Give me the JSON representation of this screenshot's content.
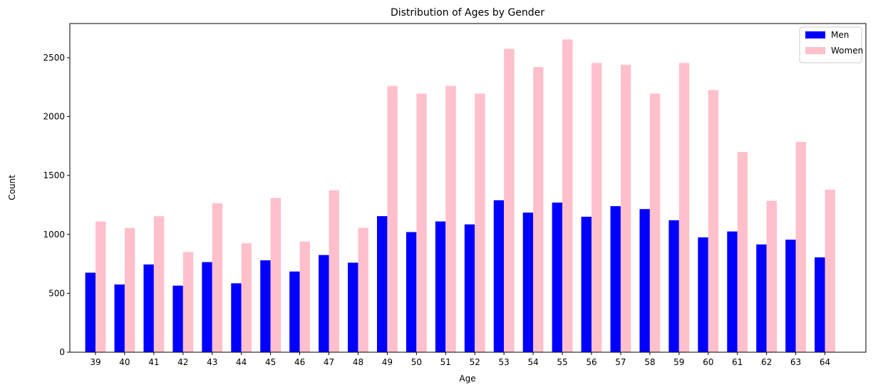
{
  "chart_data": {
    "type": "bar",
    "title": "Distribution of Ages by Gender",
    "xlabel": "Age",
    "ylabel": "Count",
    "categories": [
      "39",
      "40",
      "41",
      "42",
      "43",
      "44",
      "45",
      "46",
      "47",
      "48",
      "49",
      "50",
      "51",
      "52",
      "53",
      "54",
      "55",
      "56",
      "57",
      "58",
      "59",
      "60",
      "61",
      "62",
      "63",
      "64"
    ],
    "series": [
      {
        "name": "Men",
        "color": "#0000ff",
        "values": [
          675,
          575,
          745,
          565,
          765,
          585,
          780,
          685,
          825,
          760,
          1155,
          1020,
          1110,
          1085,
          1290,
          1185,
          1270,
          1150,
          1240,
          1215,
          1120,
          975,
          1025,
          915,
          955,
          805
        ]
      },
      {
        "name": "Women",
        "color": "#ffc0cb",
        "values": [
          1110,
          1055,
          1155,
          850,
          1265,
          925,
          1310,
          940,
          1375,
          1055,
          2260,
          2195,
          2260,
          2195,
          2575,
          2420,
          2655,
          2455,
          2440,
          2195,
          2455,
          2225,
          1700,
          1285,
          1785,
          1380
        ]
      }
    ],
    "ylim": [
      0,
      2790
    ],
    "yticks": [
      0,
      500,
      1000,
      1500,
      2000,
      2500
    ],
    "grid": false,
    "legend_position": "top-right"
  }
}
